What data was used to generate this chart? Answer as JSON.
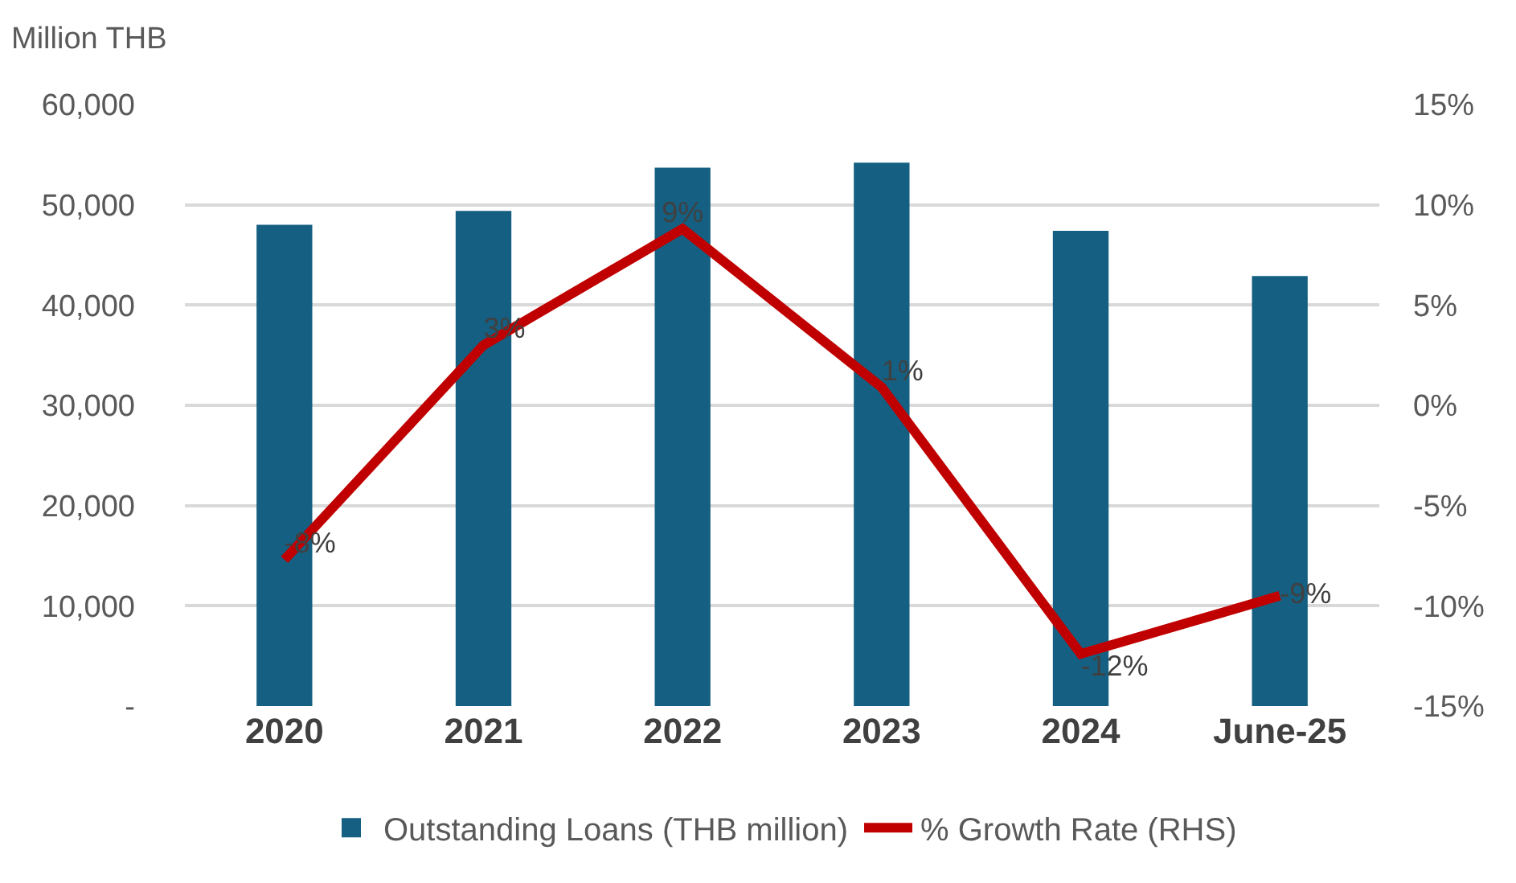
{
  "chart_data": {
    "type": "bar",
    "ylabel": "Million THB",
    "categories": [
      "2020",
      "2021",
      "2022",
      "2023",
      "2024",
      "June-25"
    ],
    "series": [
      {
        "name": "Outstanding Loans (THB million)",
        "color": "#156082",
        "values": [
          48000,
          49400,
          53700,
          54200,
          47400,
          42900
        ]
      },
      {
        "name": "% Growth Rate (RHS)",
        "type": "line",
        "axis": "y2",
        "color": "#c00000",
        "values": [
          -7.7,
          3.0,
          8.8,
          0.9,
          -12.4,
          -9.5
        ],
        "value_labels": [
          "-8%",
          "3%",
          "9%",
          "1%",
          "-12%",
          "-9%"
        ]
      }
    ],
    "ylim": [
      0,
      60000
    ],
    "yticks": [
      {
        "value": 0,
        "label": "-"
      },
      {
        "value": 10000,
        "label": "10,000"
      },
      {
        "value": 20000,
        "label": "20,000"
      },
      {
        "value": 30000,
        "label": "30,000"
      },
      {
        "value": 40000,
        "label": "40,000"
      },
      {
        "value": 50000,
        "label": "50,000"
      },
      {
        "value": 60000,
        "label": "60,000"
      }
    ],
    "y2lim": [
      -15,
      15
    ],
    "y2ticks": [
      {
        "value": -15,
        "label": "-15%"
      },
      {
        "value": -10,
        "label": "-10%"
      },
      {
        "value": -5,
        "label": "-5%"
      },
      {
        "value": 0,
        "label": "0%"
      },
      {
        "value": 5,
        "label": "5%"
      },
      {
        "value": 10,
        "label": "10%"
      },
      {
        "value": 15,
        "label": "15%"
      }
    ],
    "grid": "y",
    "legend": "bottom",
    "marker": "none",
    "line_style": "solid"
  }
}
